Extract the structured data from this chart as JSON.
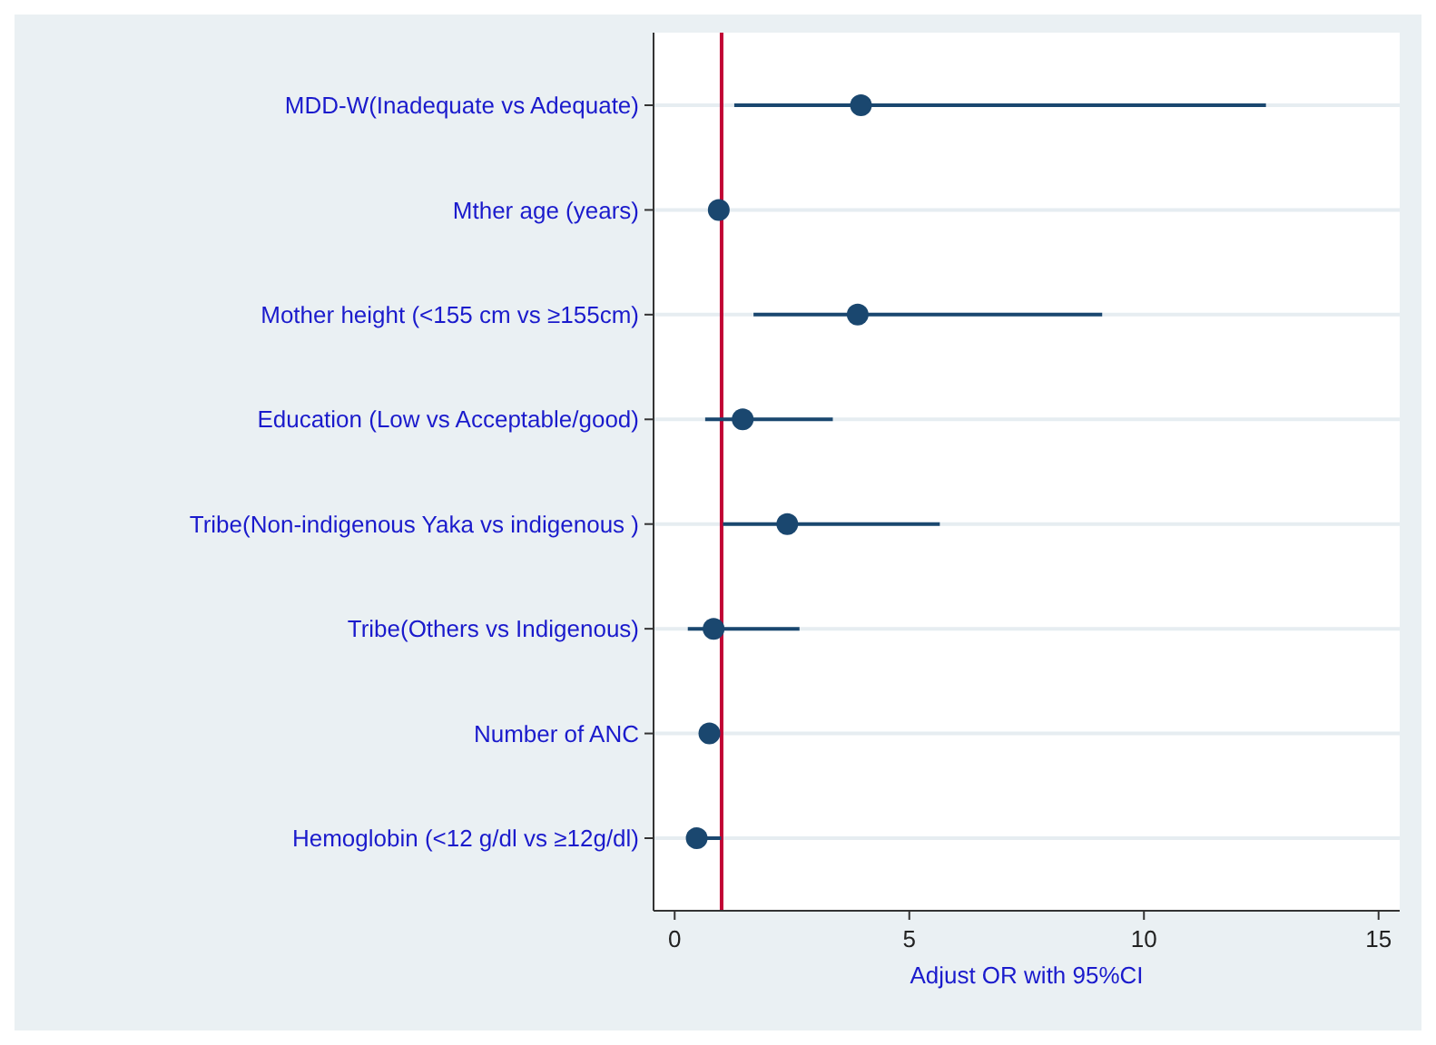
{
  "chart_data": {
    "type": "scatter",
    "orientation": "horizontal",
    "xlabel": "Adjust OR with 95%CI",
    "categories": [
      "MDD-W(Inadequate vs Adequate)",
      "Mther age (years)",
      "Mother height (<155 cm vs ≥155cm)",
      "Education (Low  vs Acceptable/good)",
      "Tribe(Non-indigenous Yaka vs indigenous )",
      "Tribe(Others vs Indigenous)",
      "Number of ANC",
      "Hemoglobin (<12 g/dl vs ≥12g/dl)"
    ],
    "series": [
      {
        "color": "#1a476f",
        "values": [
          3.97,
          0.94,
          3.9,
          1.45,
          2.4,
          0.83,
          0.74,
          0.47
        ],
        "errors": [
          [
            1.27,
            12.6
          ],
          null,
          [
            1.68,
            9.11
          ],
          [
            0.65,
            3.37
          ],
          [
            1.03,
            5.65
          ],
          [
            0.28,
            2.66
          ],
          null,
          [
            0.26,
            0.99
          ]
        ]
      }
    ],
    "xlim": [
      -0.45,
      15.45
    ],
    "xticks": [
      0,
      5,
      10,
      15
    ],
    "grid": "y",
    "marker": "circle",
    "ref_lines": [
      {
        "axis": "x",
        "value": 1,
        "color": "#c10534"
      }
    ]
  }
}
